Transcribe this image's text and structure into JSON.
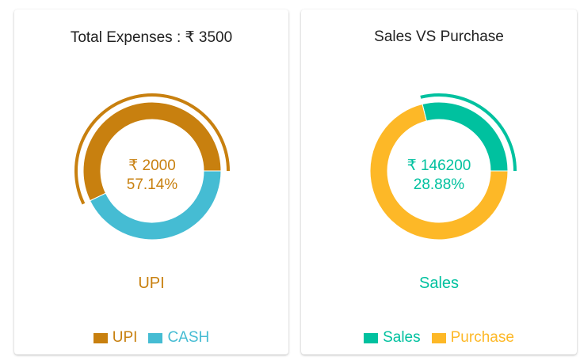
{
  "chart_data": [
    {
      "type": "pie",
      "title": "Total Expenses : ₹ 3500",
      "total": 3500,
      "slices": [
        {
          "label": "UPI",
          "value": 2000,
          "color": "#c8800f"
        },
        {
          "label": "CASH",
          "value": 1500,
          "color": "#45bcd3"
        }
      ],
      "active_index": 0,
      "center_value": "₹ 2000",
      "center_percent": "57.14%",
      "active_label": "UPI",
      "legend": [
        "UPI",
        "CASH"
      ],
      "legend_position": "bottom"
    },
    {
      "type": "pie",
      "title": "Sales VS Purchase",
      "slices": [
        {
          "label": "Sales",
          "value": 146200,
          "color": "#00c19f"
        },
        {
          "label": "Purchase",
          "value": 360000,
          "color": "#fdb827"
        }
      ],
      "active_index": 0,
      "center_value": "₹ 146200",
      "center_percent": "28.88%",
      "active_label": "Sales",
      "legend": [
        "Sales",
        "Purchase"
      ],
      "legend_position": "bottom"
    }
  ]
}
